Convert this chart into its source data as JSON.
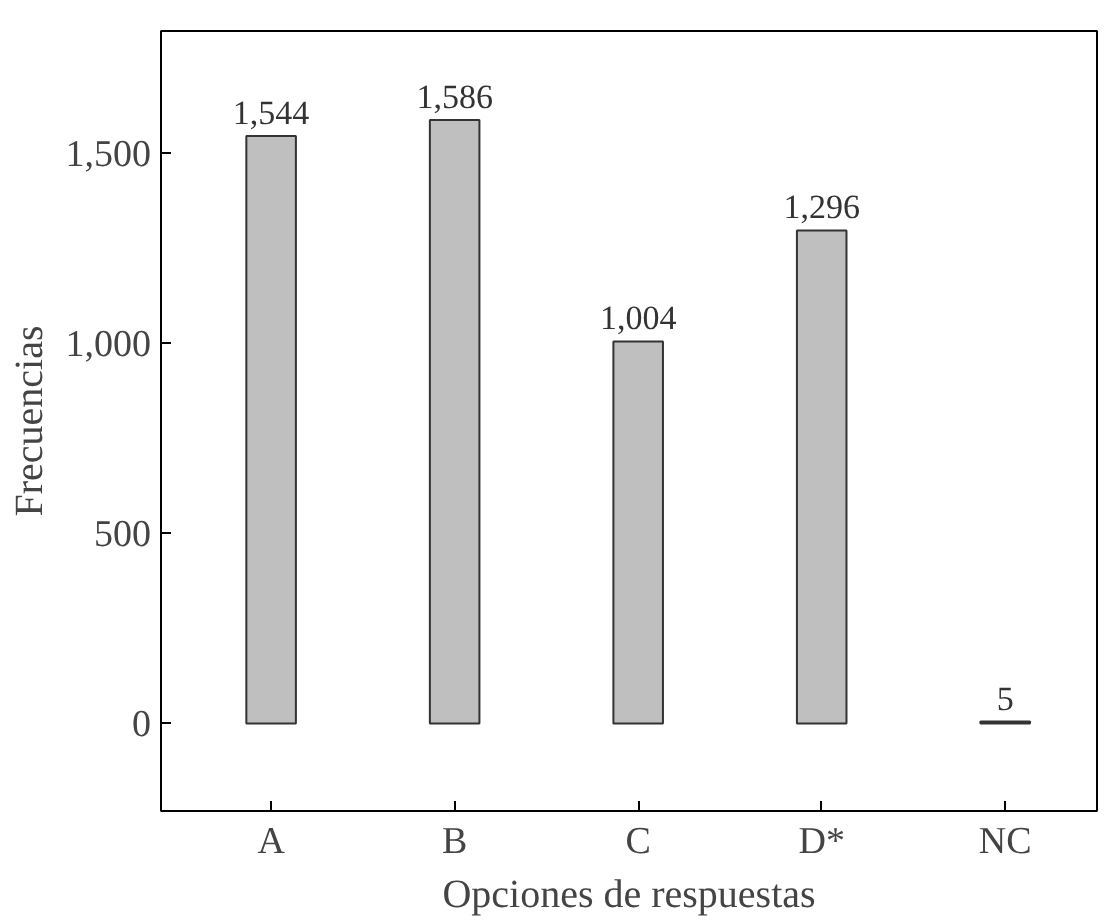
{
  "chart_data": {
    "type": "bar",
    "xlabel": "Opciones de respuestas",
    "ylabel": "Frecuencias",
    "categories": [
      "A",
      "B",
      "C",
      "D*",
      "NC"
    ],
    "values": [
      1544,
      1586,
      1004,
      1296,
      5
    ],
    "value_labels": [
      "1,544",
      "1,586",
      "1,004",
      "1,296",
      "5"
    ],
    "color": "#bfbfbf",
    "ylim": [
      -230,
      1820
    ],
    "yticks": [
      0,
      500,
      {
        "value": 1000,
        "label": "1,000"
      },
      {
        "value": 1500,
        "label": "1,500"
      }
    ],
    "grid": false
  }
}
